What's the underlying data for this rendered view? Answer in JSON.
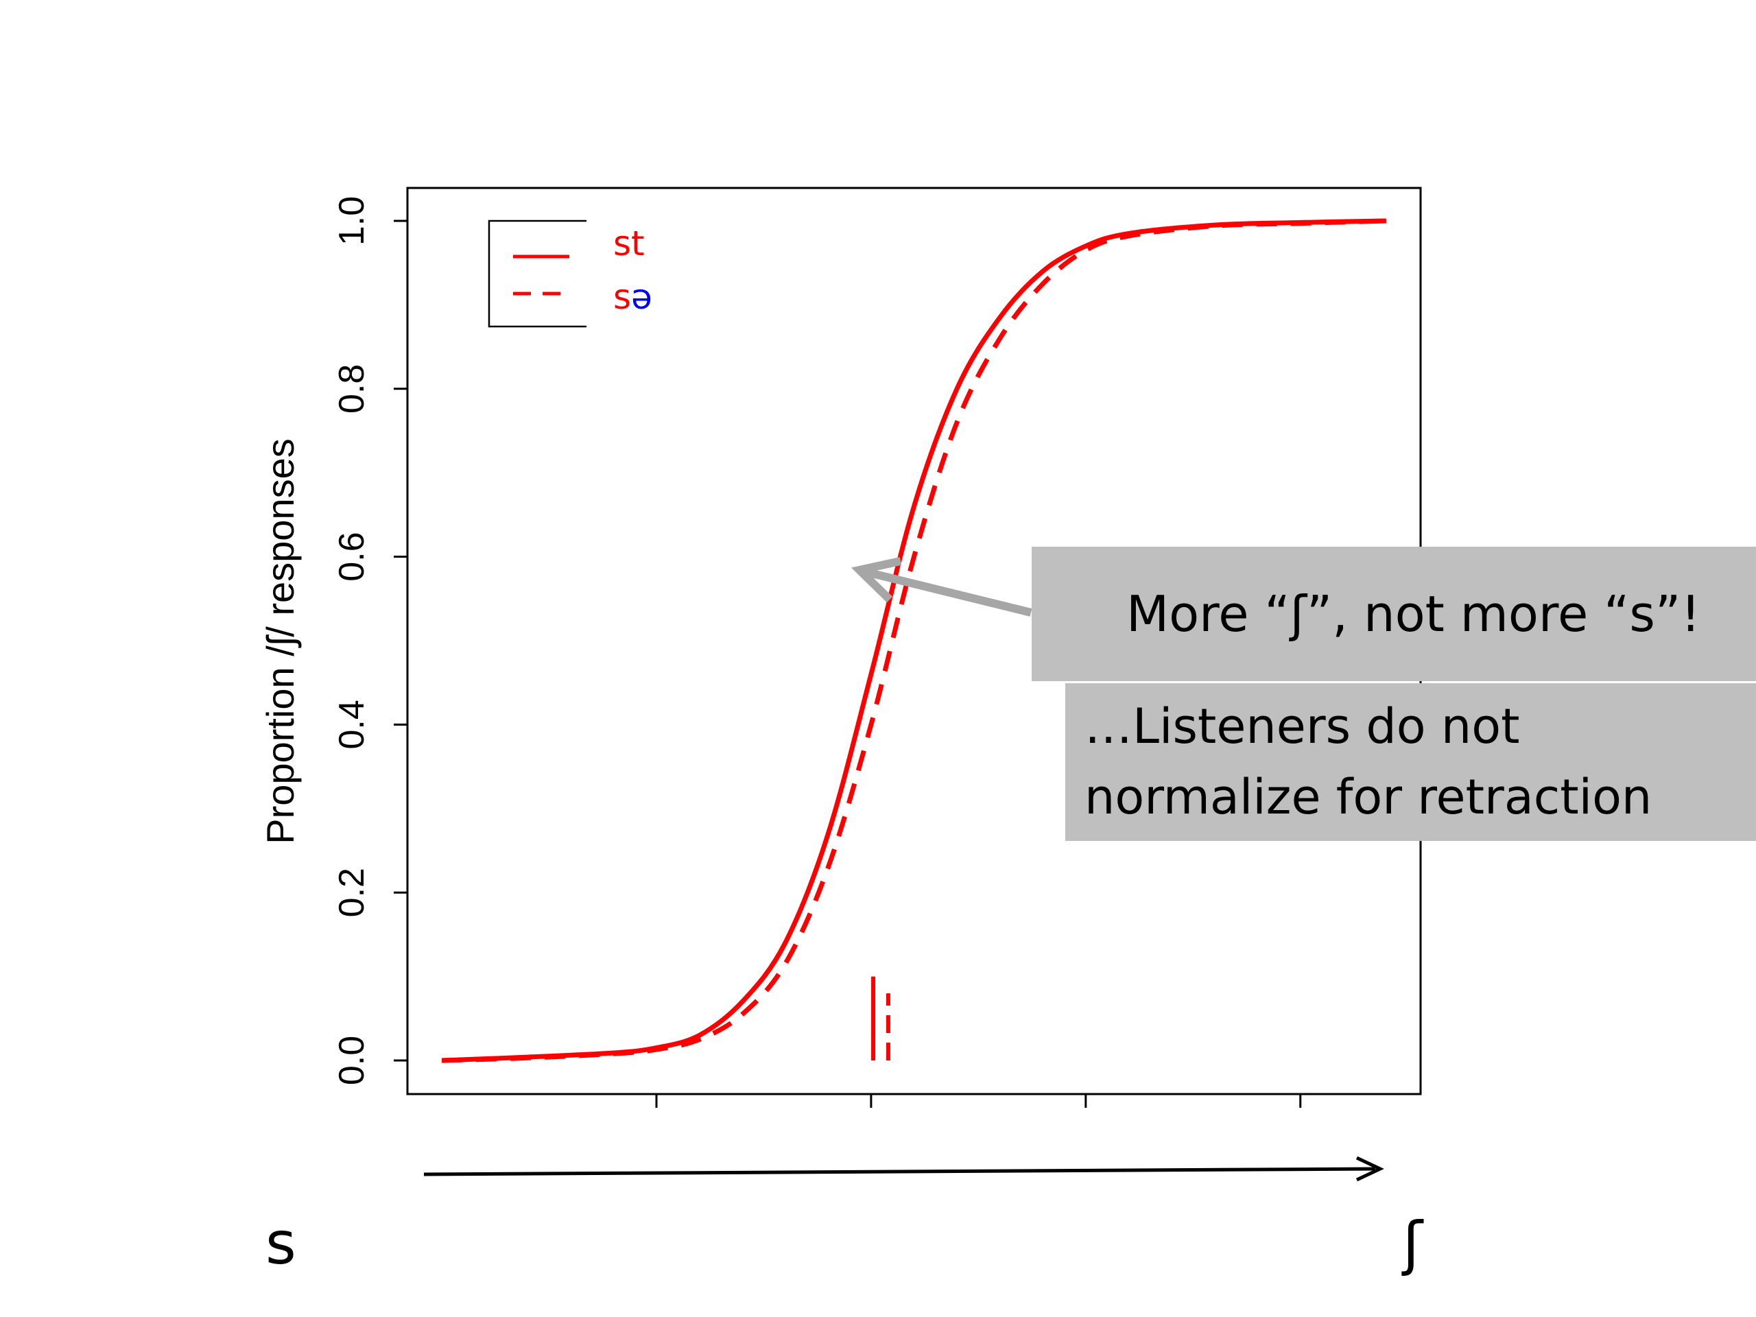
{
  "chart_data": {
    "type": "line",
    "ylabel": "Proportion /ʃ/ responses",
    "ylim": [
      0,
      1.0
    ],
    "yticks": [
      0.0,
      0.2,
      0.4,
      0.6,
      0.8,
      1.0
    ],
    "ytick_labels": [
      "0.0",
      "0.2",
      "0.4",
      "0.6",
      "0.8",
      "1.0"
    ],
    "xlim": [
      0.84,
      5.56
    ],
    "xticks": [
      2,
      3,
      4,
      5
    ],
    "grid": false,
    "legend_position": "top-left",
    "series": [
      {
        "name": "st",
        "line_style": "solid",
        "color": "#ff0000",
        "x": [
          1.0,
          1.4,
          1.8,
          2.0,
          2.2,
          2.4,
          2.6,
          2.8,
          3.0,
          3.2,
          3.4,
          3.6,
          3.8,
          4.0,
          4.2,
          4.6,
          5.0,
          5.4
        ],
        "y": [
          0.0,
          0.004,
          0.009,
          0.015,
          0.03,
          0.07,
          0.14,
          0.27,
          0.46,
          0.66,
          0.8,
          0.885,
          0.94,
          0.97,
          0.985,
          0.995,
          0.998,
          1.0
        ]
      },
      {
        "name": "sə",
        "line_style": "dashed",
        "color": "#ff0000",
        "x": [
          1.0,
          1.4,
          1.8,
          2.0,
          2.2,
          2.4,
          2.6,
          2.8,
          3.0,
          3.2,
          3.4,
          3.6,
          3.8,
          4.0,
          4.2,
          4.6,
          5.0,
          5.4
        ],
        "y": [
          0.0,
          0.003,
          0.008,
          0.013,
          0.025,
          0.055,
          0.115,
          0.23,
          0.4,
          0.6,
          0.76,
          0.86,
          0.925,
          0.965,
          0.982,
          0.994,
          0.997,
          1.0
        ]
      }
    ],
    "boundary_markers": [
      {
        "series": "st",
        "x": 3.01,
        "y_top": 0.1,
        "line_style": "solid"
      },
      {
        "series": "sə",
        "x": 3.08,
        "y_top": 0.08,
        "line_style": "dashed"
      }
    ]
  },
  "legend": {
    "st": "st",
    "sa_s": "s",
    "sa_schwa": "ə",
    "s_color": "#ff0000",
    "schwa_color": "#0000ff"
  },
  "continuum": {
    "left_label": "s",
    "right_label": "ʃ"
  },
  "callout": {
    "main_text": "More “ʃ”, not more “s”!",
    "sub_line1": "…Listeners do not",
    "sub_line2": "normalize for retraction",
    "box_color": "#bfbfbf",
    "arrow_color": "#a6a6a6"
  }
}
